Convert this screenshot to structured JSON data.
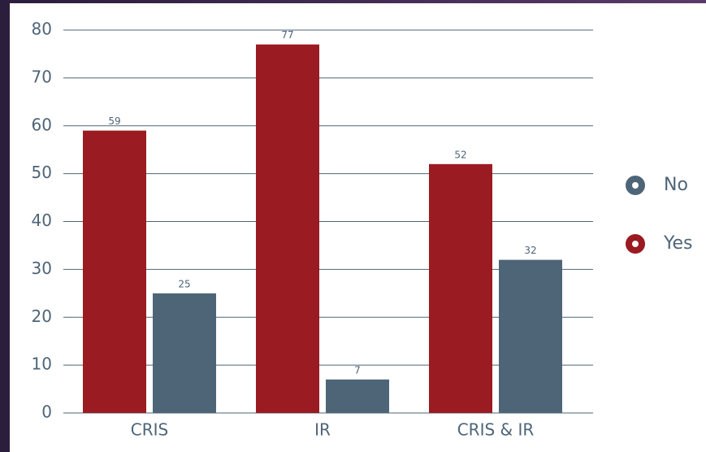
{
  "chart_data": {
    "type": "bar",
    "categories": [
      "CRIS",
      "IR",
      "CRIS & IR"
    ],
    "series": [
      {
        "name": "Yes",
        "color": "#9a1b21",
        "values": [
          59,
          77,
          52
        ]
      },
      {
        "name": "No",
        "color": "#4e6578",
        "values": [
          25,
          7,
          32
        ]
      }
    ],
    "ylim": [
      0,
      80
    ],
    "yticks": [
      0,
      10,
      20,
      30,
      40,
      50,
      60,
      70,
      80
    ],
    "grid": true,
    "legend": "right"
  }
}
